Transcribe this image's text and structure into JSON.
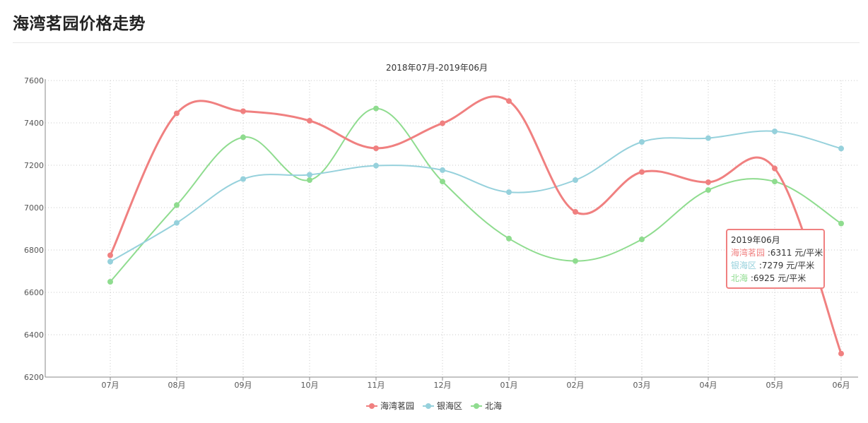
{
  "page": {
    "title": "海湾茗园价格走势"
  },
  "chart_data": {
    "type": "line",
    "title": "2018年07月-2019年06月",
    "categories": [
      "07月",
      "08月",
      "09月",
      "10月",
      "11月",
      "12月",
      "01月",
      "02月",
      "03月",
      "04月",
      "05月",
      "06月"
    ],
    "ylim": [
      6200,
      7600
    ],
    "yticks": [
      6200,
      6400,
      6600,
      6800,
      7000,
      7200,
      7400,
      7600
    ],
    "grid": true,
    "legend_position": "bottom-center",
    "series": [
      {
        "name": "海湾茗园",
        "color": "#f08080",
        "values": [
          6775,
          7445,
          7455,
          7410,
          7280,
          7398,
          7503,
          6980,
          7168,
          7120,
          7185,
          6311
        ]
      },
      {
        "name": "银海区",
        "color": "#96d1dc",
        "values": [
          6745,
          6928,
          7135,
          7155,
          7198,
          7177,
          7073,
          7130,
          7310,
          7328,
          7360,
          7279
        ]
      },
      {
        "name": "北海",
        "color": "#8fdc8f",
        "values": [
          6650,
          7012,
          7332,
          7130,
          7468,
          7123,
          6854,
          6748,
          6850,
          7083,
          7123,
          6925
        ]
      }
    ]
  },
  "tooltip": {
    "title": "2019年06月",
    "unit": "元/平米",
    "rows": [
      {
        "name": "海湾茗园",
        "value": "6311",
        "color": "#f08080"
      },
      {
        "name": "银海区",
        "value": "7279",
        "color": "#96d1dc"
      },
      {
        "name": "北海",
        "value": "6925",
        "color": "#8fdc8f"
      }
    ]
  }
}
